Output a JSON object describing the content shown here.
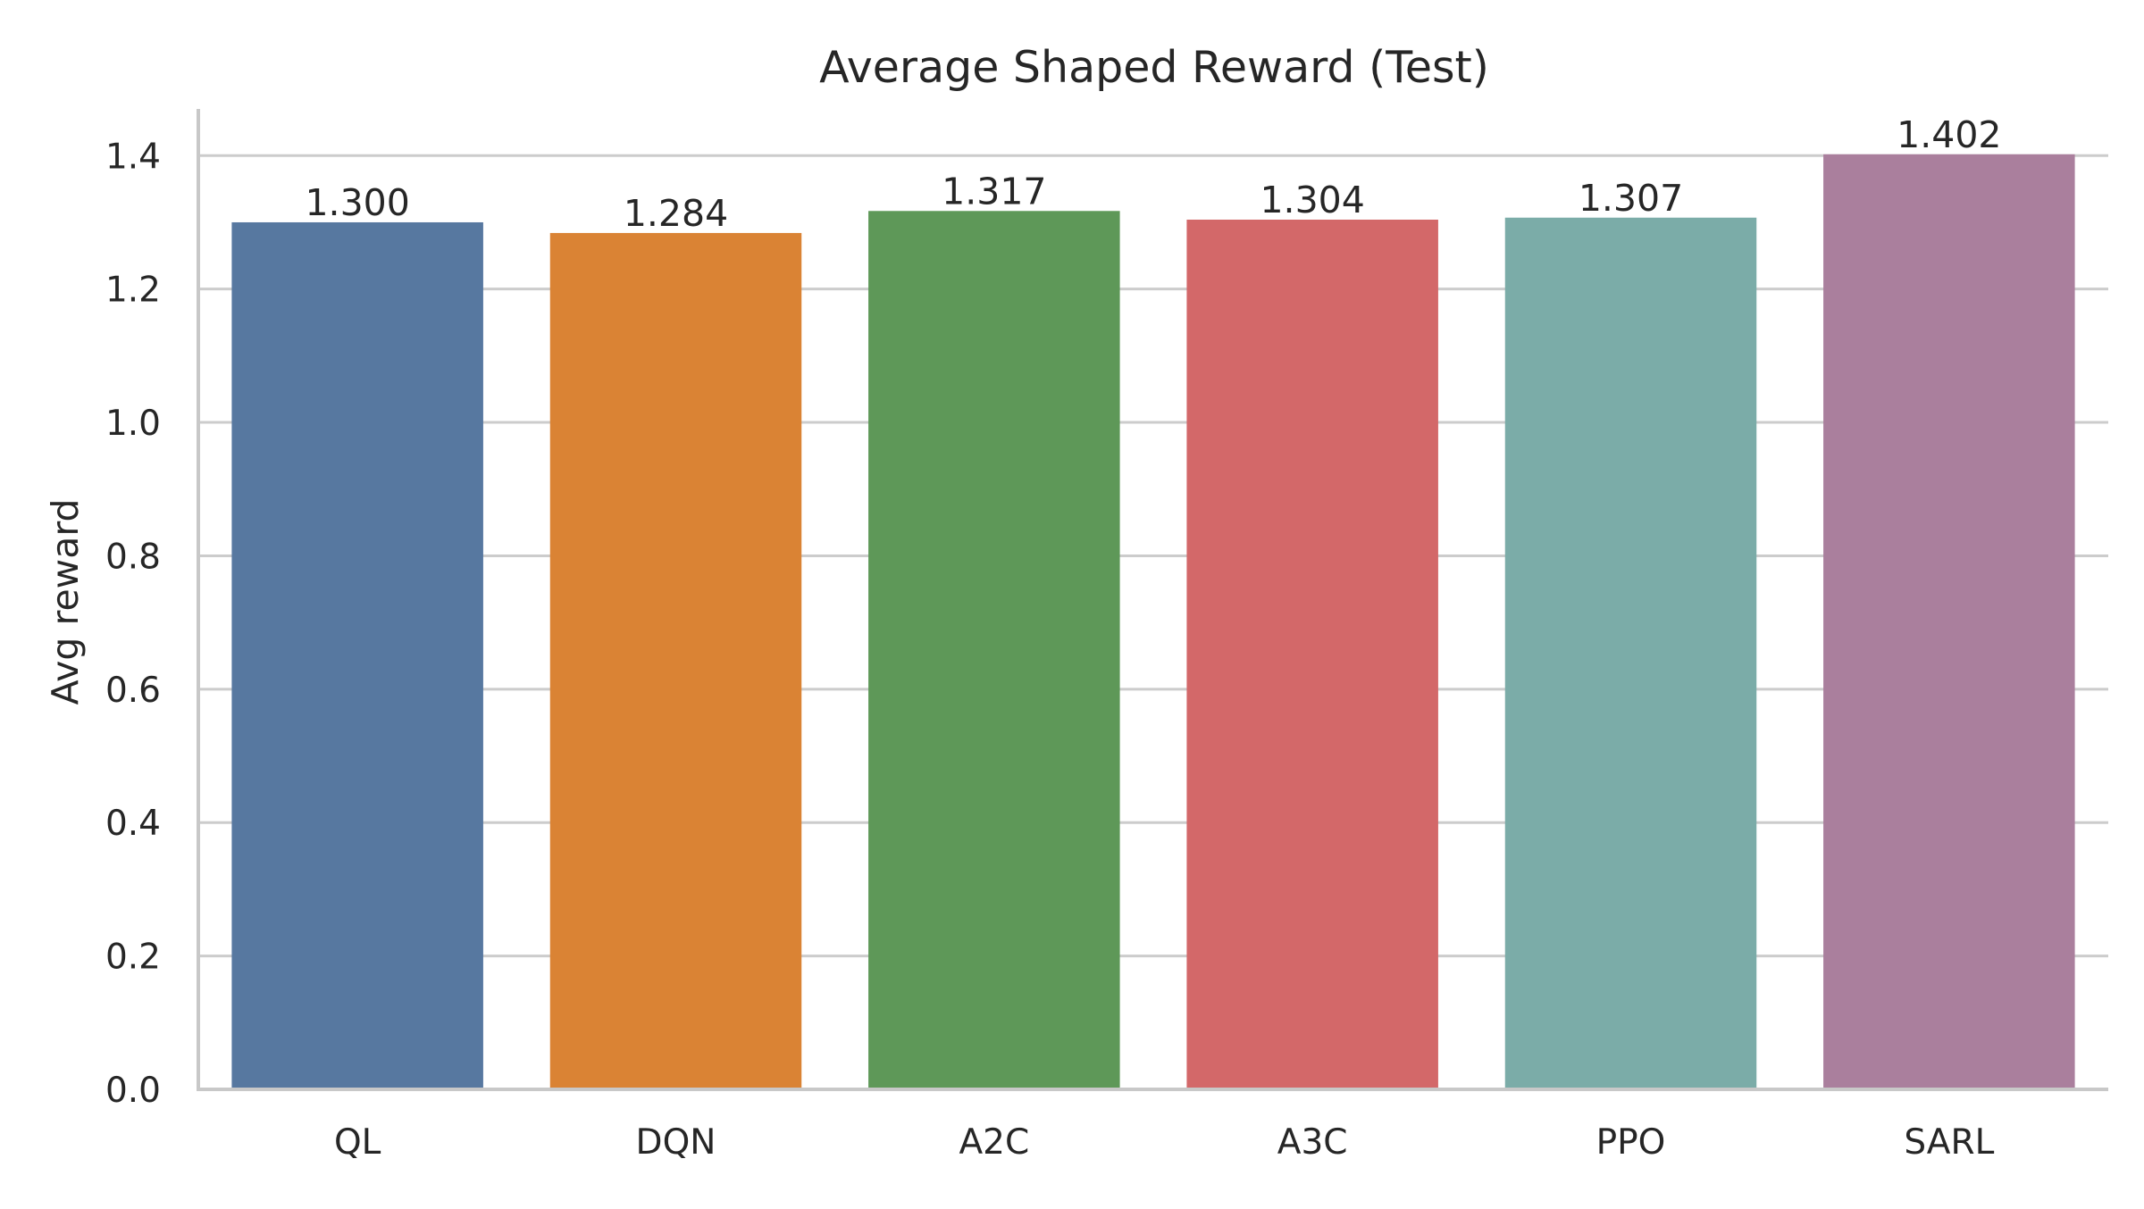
{
  "chart_data": {
    "type": "bar",
    "title": "Average Shaped Reward (Test)",
    "xlabel": "",
    "ylabel": "Avg reward",
    "categories": [
      "QL",
      "DQN",
      "A2C",
      "A3C",
      "PPO",
      "SARL"
    ],
    "values": [
      1.3,
      1.284,
      1.317,
      1.304,
      1.307,
      1.402
    ],
    "value_labels": [
      "1.300",
      "1.284",
      "1.317",
      "1.304",
      "1.307",
      "1.402"
    ],
    "colors": [
      "#5778A0",
      "#DA8334",
      "#5E9858",
      "#D36869",
      "#7BACA8",
      "#AA7F9D"
    ],
    "ylim": [
      0,
      1.47
    ],
    "yticks": [
      0.0,
      0.2,
      0.4,
      0.6,
      0.8,
      1.0,
      1.2,
      1.4
    ],
    "ytick_labels": [
      "0.0",
      "0.2",
      "0.4",
      "0.6",
      "0.8",
      "1.0",
      "1.2",
      "1.4"
    ],
    "grid": "y",
    "legend": "none"
  }
}
